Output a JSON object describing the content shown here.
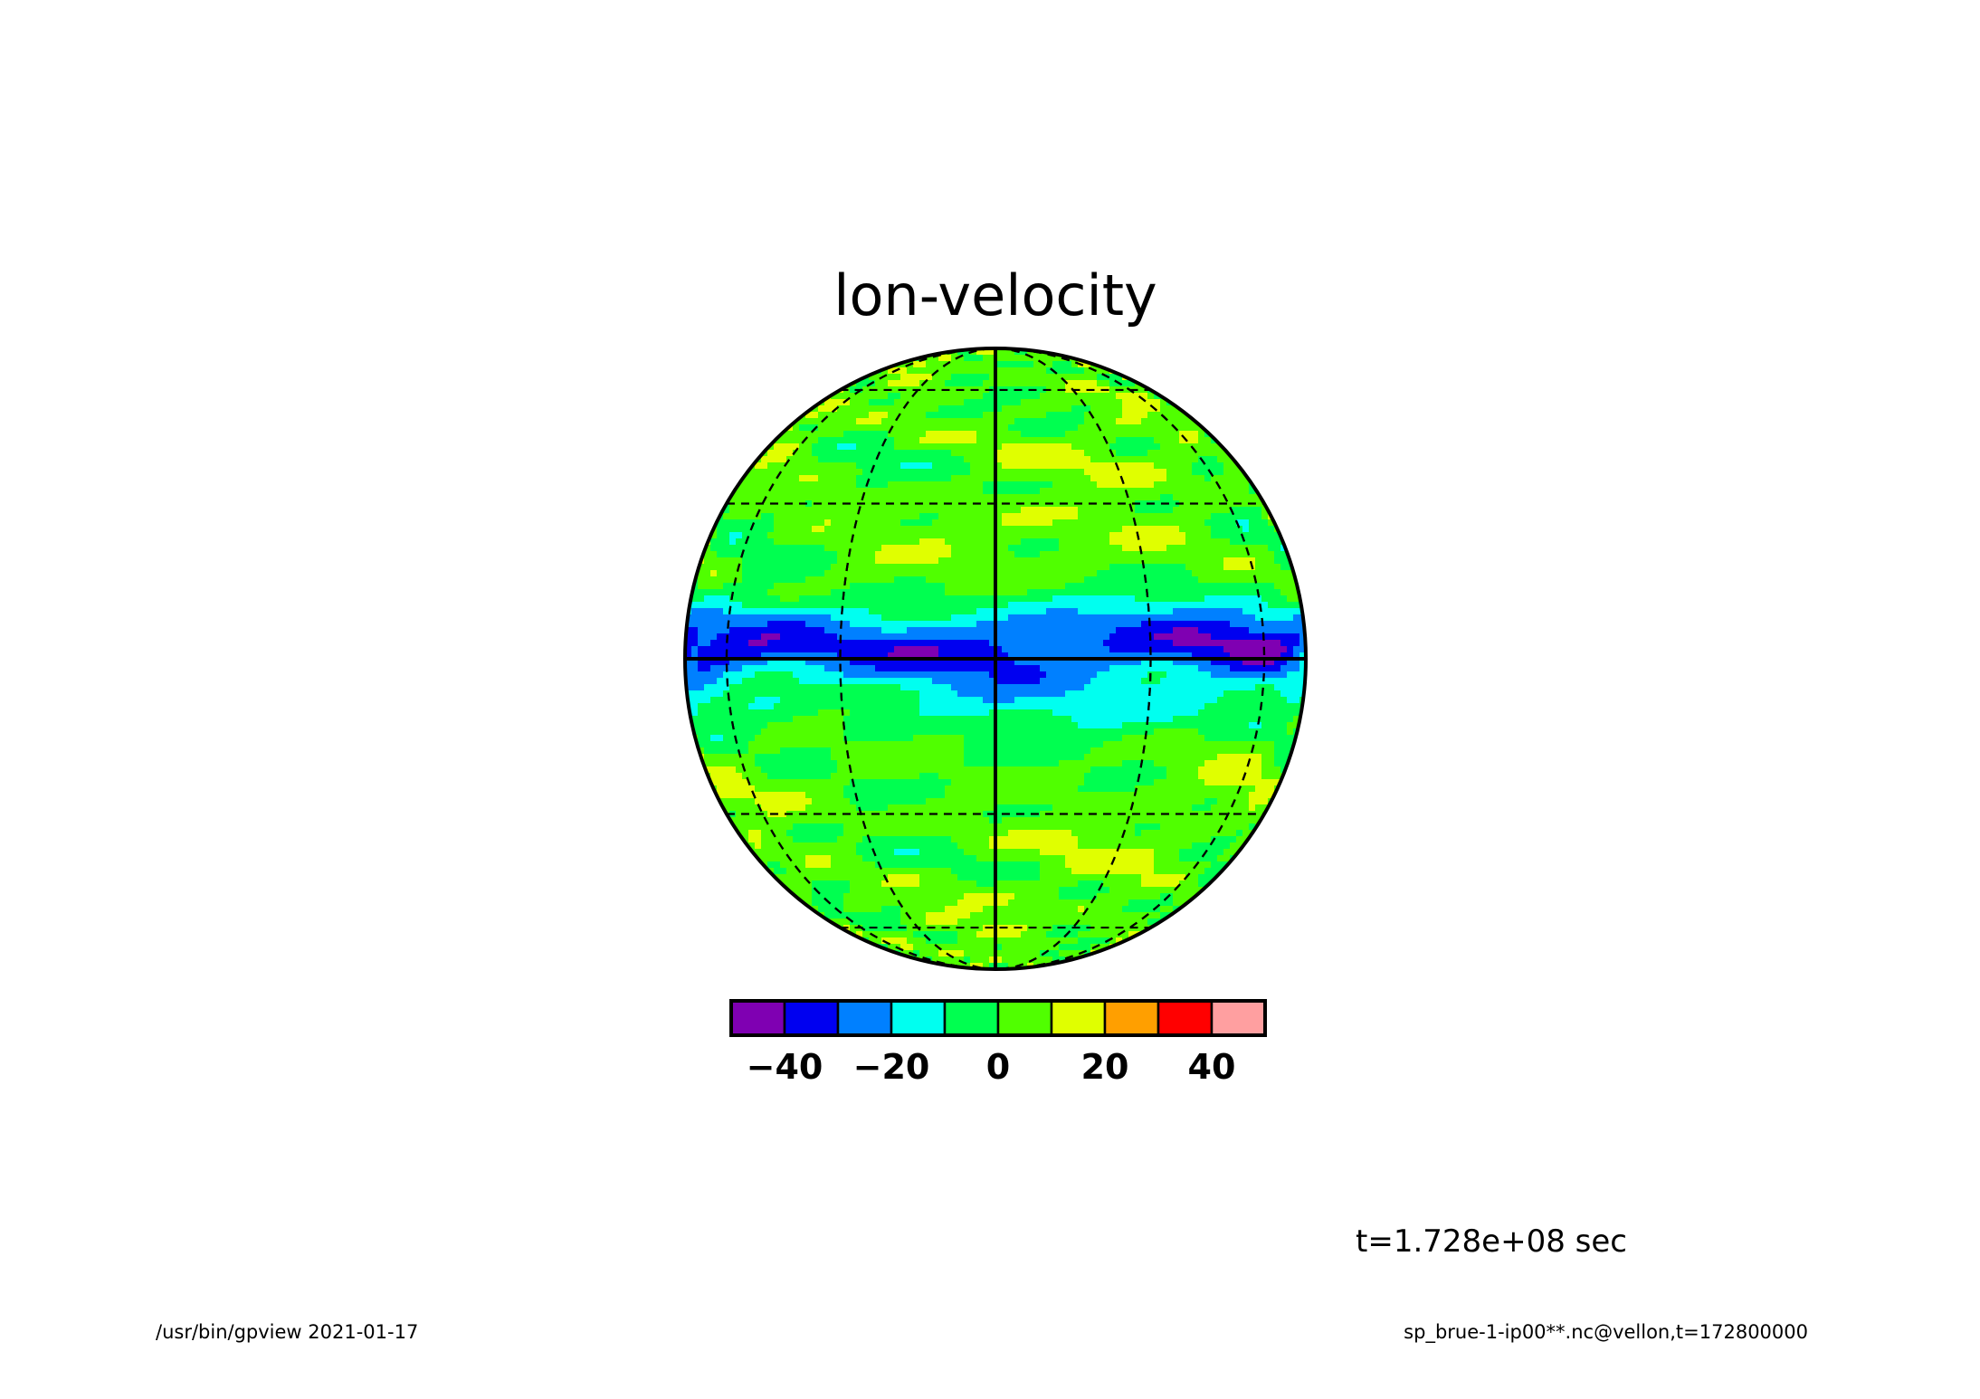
{
  "chart_data": {
    "type": "heatmap",
    "projection": "orthographic",
    "title": "lon-velocity",
    "colorbar": {
      "levels": [
        -50,
        -40,
        -30,
        -20,
        -10,
        0,
        10,
        20,
        30,
        40,
        50
      ],
      "colors": [
        "#7f00b2",
        "#0000f0",
        "#0080ff",
        "#00fff0",
        "#00ff50",
        "#50ff00",
        "#e0ff00",
        "#ff9f00",
        "#ff0000",
        "#ff9fa0"
      ],
      "tick_labels": [
        "−40",
        "−20",
        "0",
        "20",
        "40"
      ],
      "tick_values": [
        -40,
        -20,
        0,
        20,
        40
      ]
    },
    "graticule": {
      "meridians_deg": [
        -60,
        -30,
        30,
        60
      ],
      "parallels_deg": [
        -60,
        -30,
        30,
        60
      ],
      "central_meridian": true,
      "equator": true
    },
    "time_label": "t=1.728e+08 sec"
  },
  "footer": {
    "left": "/usr/bin/gpview   2021-01-17",
    "right": "sp_brue-1-ip00**.nc@vellon,t=172800000"
  }
}
